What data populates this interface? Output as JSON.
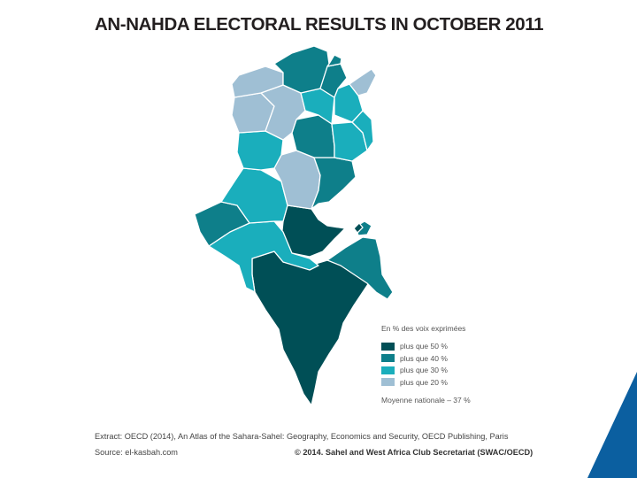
{
  "title": "AN-NAHDA ELECTORAL RESULTS IN OCTOBER 2011",
  "legend": {
    "title": "En % des voix exprimées",
    "items": [
      {
        "label": "plus que 50 %",
        "color": "#004f56"
      },
      {
        "label": "plus que 40 %",
        "color": "#0e7f8a"
      },
      {
        "label": "plus que 30 %",
        "color": "#1aaebc"
      },
      {
        "label": "plus que 20 %",
        "color": "#9fbfd4"
      }
    ],
    "note": "Moyenne nationale – 37 %"
  },
  "footer": {
    "extract": "Extract: OECD (2014), An Atlas of the Sahara-Sahel: Geography, Economics and Security, OECD Publishing, Paris",
    "source": "Source: el-kasbah.com",
    "copyright": "© 2014. Sahel and West Africa Club Secretariat (SWAC/OECD)"
  },
  "colors": {
    "dark": "#004f56",
    "mid": "#0e7f8a",
    "light": "#1aaebc",
    "pale": "#9fbfd4",
    "corner_blue": "#0b5fa0"
  }
}
